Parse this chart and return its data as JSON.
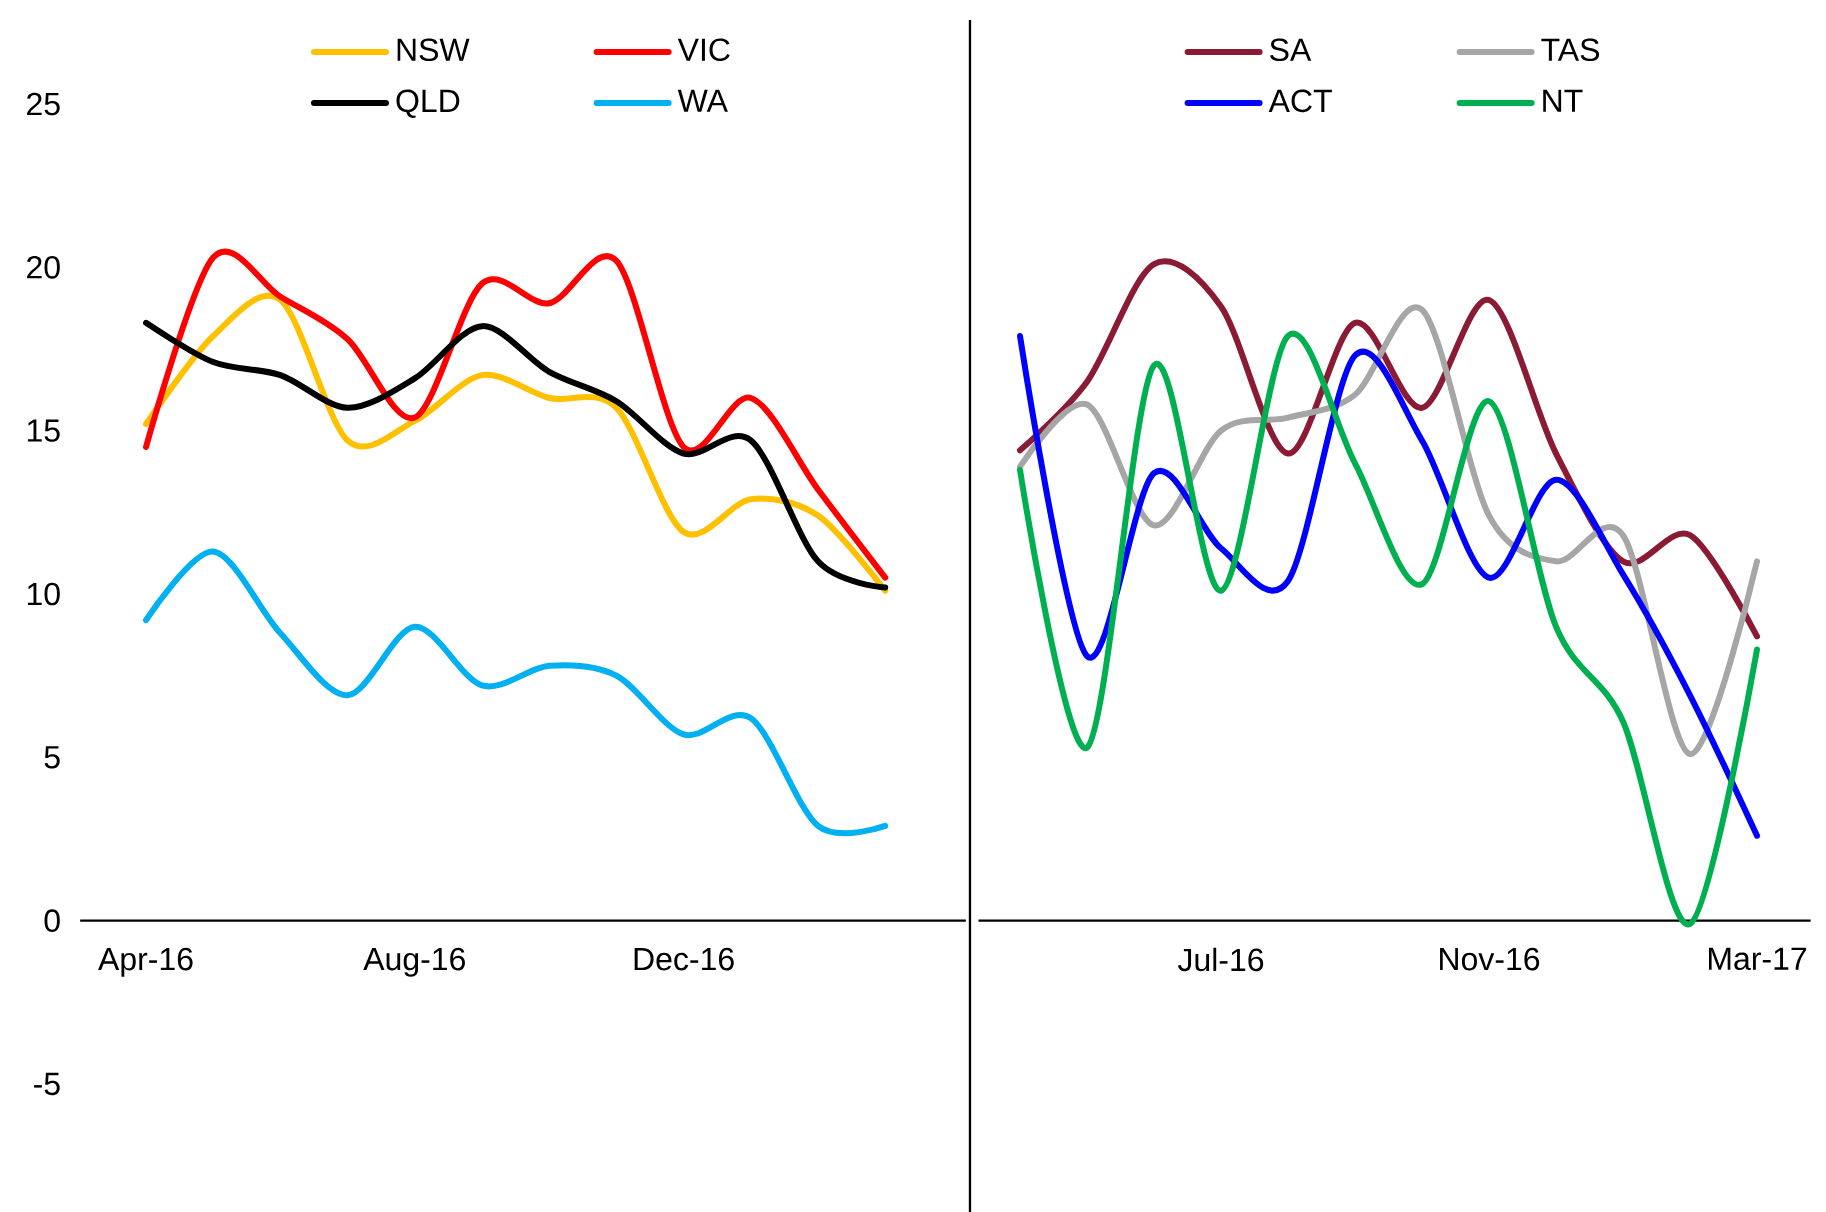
{
  "chart_data": [
    {
      "type": "line",
      "categories": [
        "Apr-16",
        null,
        null,
        null,
        "Aug-16",
        null,
        null,
        null,
        "Dec-16",
        null,
        null,
        null
      ],
      "ylim": [
        -5,
        25
      ],
      "yticks": [
        -5,
        0,
        5,
        10,
        15,
        20,
        25
      ],
      "legend": "top",
      "series": [
        {
          "name": "NSW",
          "color": "#ffc000",
          "values": [
            15.2,
            17.9,
            19.0,
            14.7,
            15.3,
            16.7,
            16.0,
            15.7,
            11.9,
            12.9,
            12.4,
            10.1
          ]
        },
        {
          "name": "VIC",
          "color": "#ff0000",
          "values": [
            14.5,
            20.3,
            19.1,
            17.8,
            15.4,
            19.5,
            18.9,
            20.2,
            14.5,
            16.0,
            13.2,
            10.5
          ]
        },
        {
          "name": "QLD",
          "color": "#000000",
          "values": [
            18.3,
            17.1,
            16.7,
            15.7,
            16.6,
            18.2,
            16.8,
            15.9,
            14.3,
            14.7,
            11.0,
            10.2
          ]
        },
        {
          "name": "WA",
          "color": "#00b0f0",
          "values": [
            9.2,
            11.3,
            8.8,
            6.9,
            9.0,
            7.2,
            7.8,
            7.5,
            5.7,
            6.2,
            2.9,
            2.9
          ]
        }
      ]
    },
    {
      "type": "line",
      "categories": [
        null,
        null,
        null,
        "Jul-16",
        null,
        null,
        null,
        "Nov-16",
        null,
        null,
        null,
        "Mar-17"
      ],
      "ylim": [
        -5,
        25
      ],
      "tick_labels": "x",
      "legend": "top",
      "series": [
        {
          "name": "SA",
          "color": "#8b1a35",
          "values": [
            14.4,
            16.5,
            20.1,
            18.8,
            14.3,
            18.3,
            15.7,
            19.0,
            14.3,
            11.0,
            11.8,
            8.7
          ]
        },
        {
          "name": "TAS",
          "color": "#a6a6a6",
          "values": [
            13.9,
            15.8,
            12.1,
            15.0,
            15.4,
            16.1,
            18.7,
            12.4,
            11.0,
            11.8,
            5.1,
            11.0
          ]
        },
        {
          "name": "ACT",
          "color": "#0000ff",
          "values": [
            17.9,
            8.1,
            13.7,
            11.4,
            10.4,
            17.3,
            14.7,
            10.5,
            13.5,
            10.6,
            6.9,
            2.6
          ]
        },
        {
          "name": "NT",
          "color": "#00b050",
          "values": [
            13.8,
            5.3,
            17.0,
            10.1,
            17.9,
            14.0,
            10.3,
            15.9,
            9.0,
            6.1,
            -0.1,
            8.3
          ]
        }
      ]
    }
  ]
}
